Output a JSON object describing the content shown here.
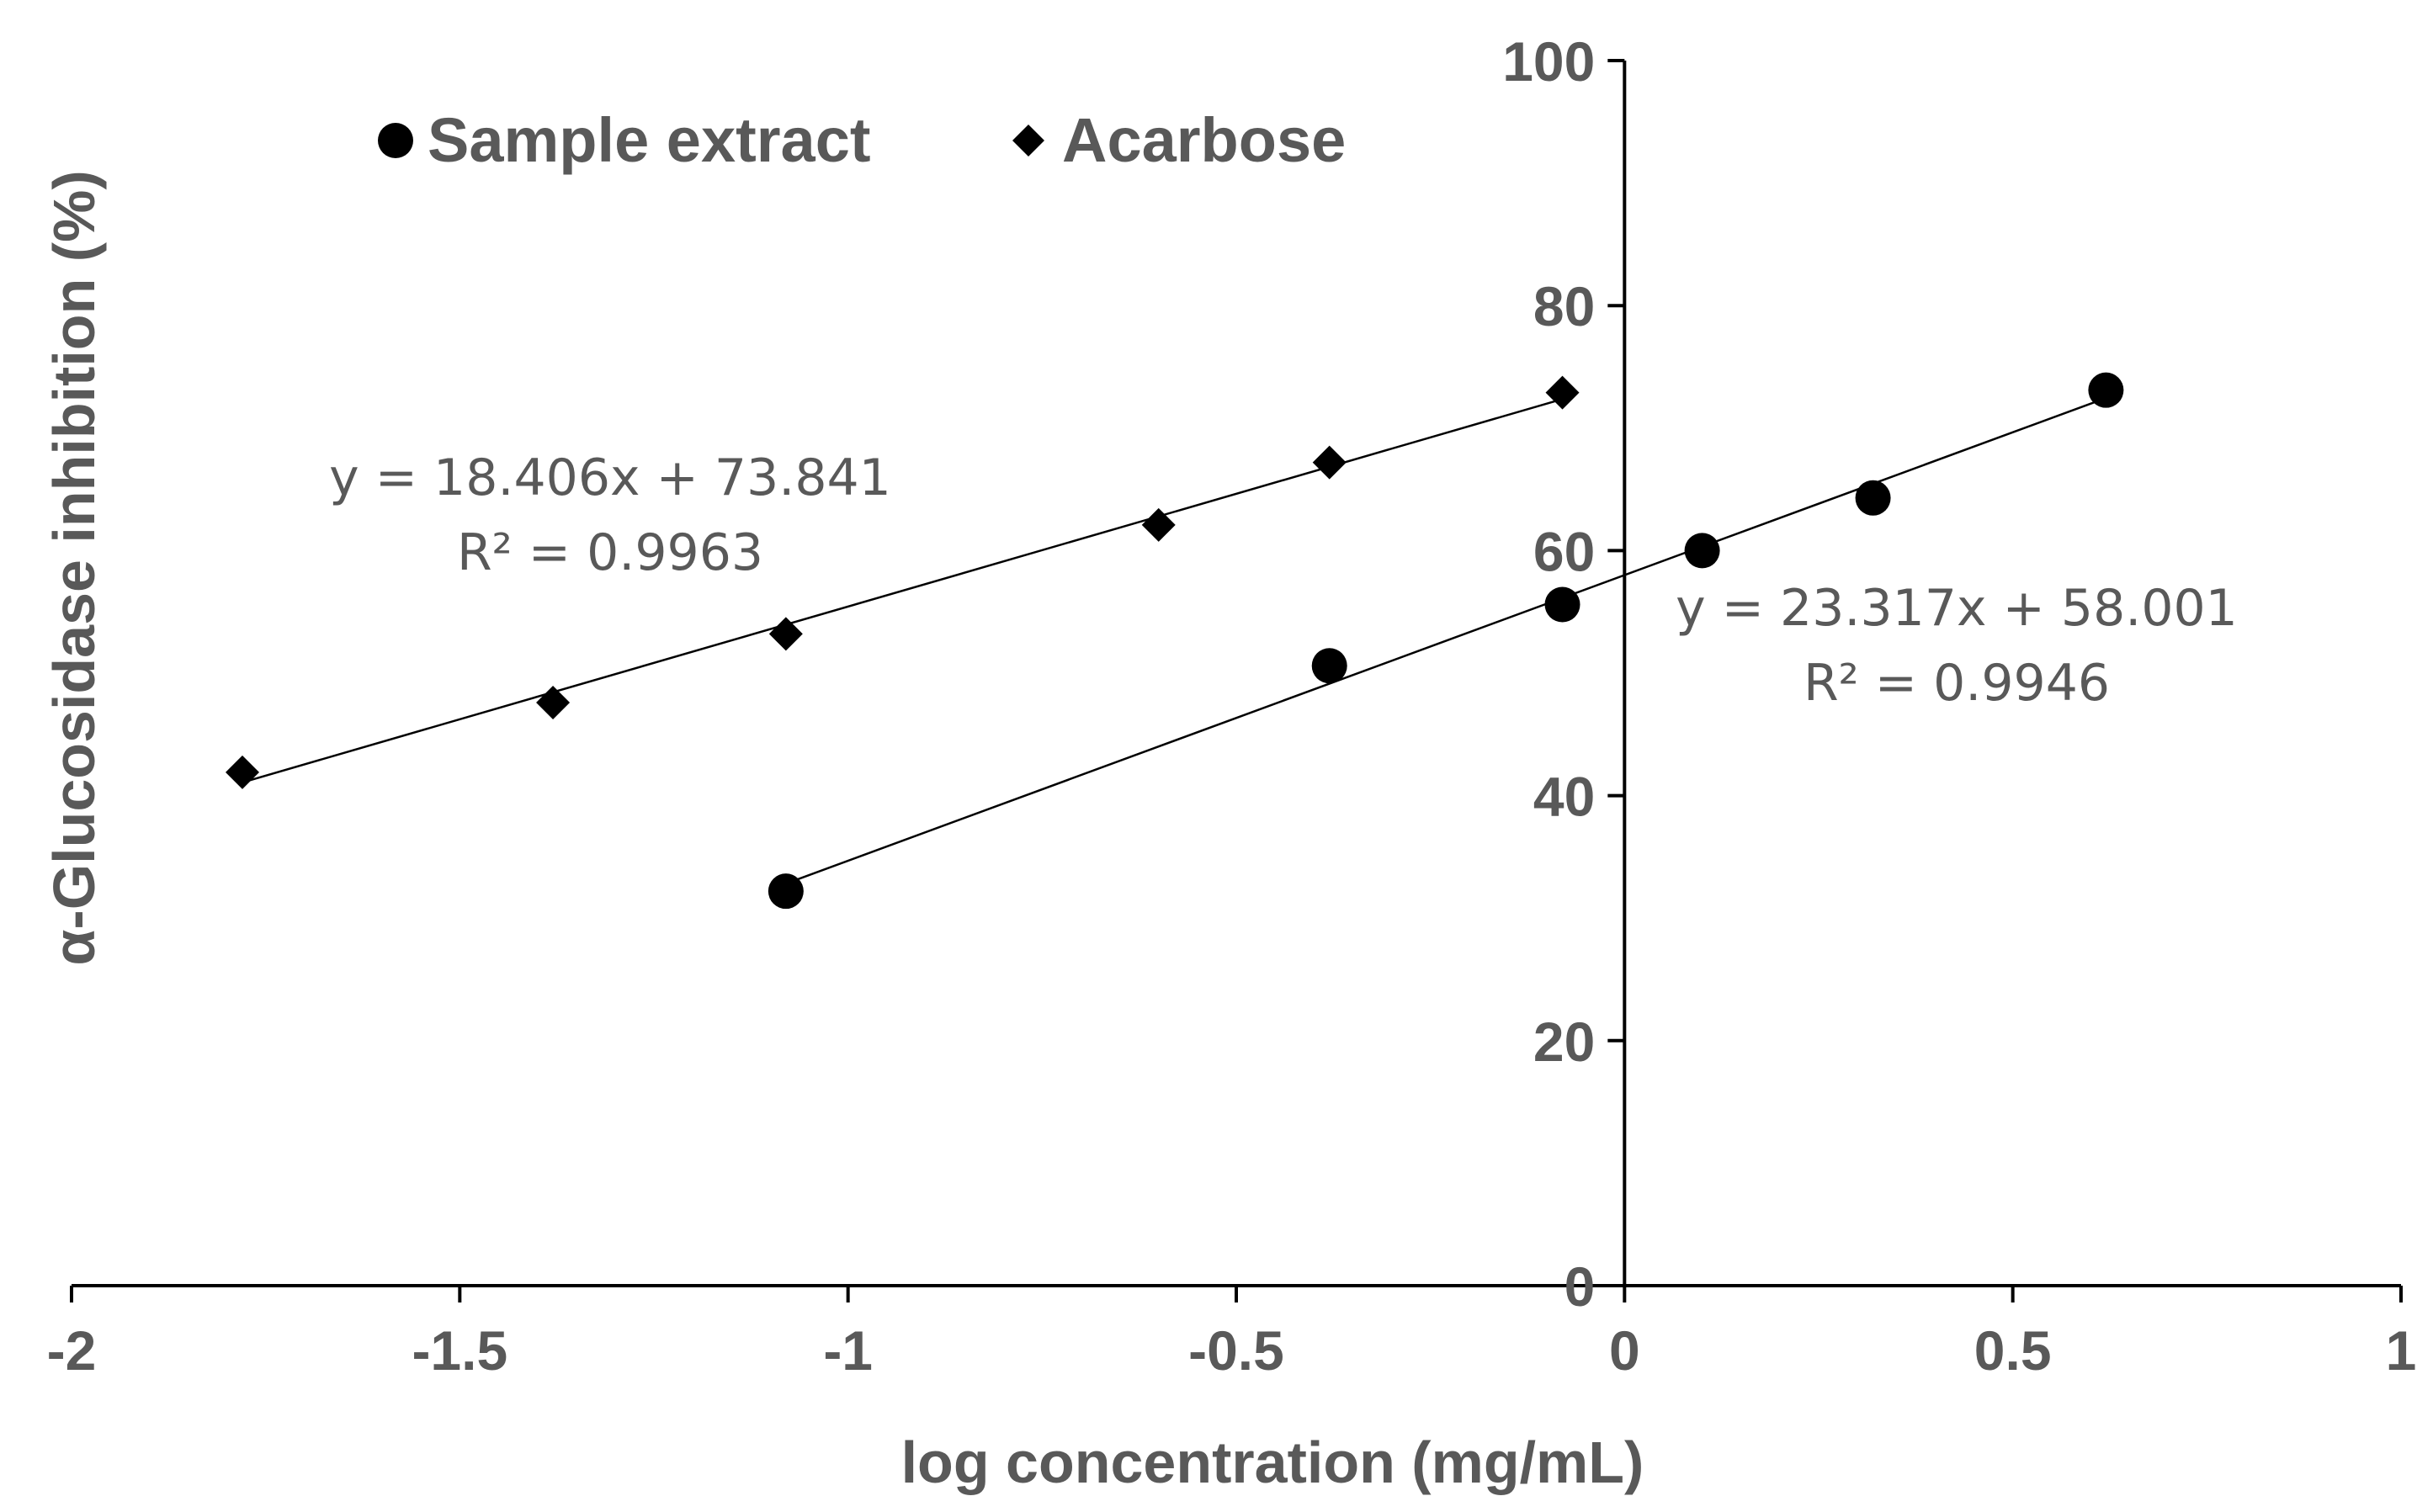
{
  "chart_data": {
    "type": "scatter",
    "title": "",
    "xlabel": "log concentration (mg/mL)",
    "ylabel": "α-Glucosidase inhibition (%)",
    "xlim": [
      -2,
      1
    ],
    "ylim": [
      0,
      100
    ],
    "x_ticks": [
      -2,
      -1.5,
      -1,
      -0.5,
      0,
      0.5,
      1
    ],
    "x_tick_labels": [
      "-2",
      "-1.5",
      "-1",
      "-0.5",
      "0",
      "0.5",
      "1"
    ],
    "y_ticks": [
      0,
      20,
      40,
      60,
      80,
      100
    ],
    "y_tick_labels": [
      "0",
      "20",
      "40",
      "60",
      "80",
      "100"
    ],
    "grid": false,
    "legend_position": "top-left",
    "series": [
      {
        "name": "Sample extract",
        "marker": "circle",
        "color": "#000000",
        "x": [
          -1.08,
          -0.38,
          -0.08,
          0.1,
          0.32,
          0.62
        ],
        "y": [
          32.2,
          50.6,
          55.6,
          60.0,
          64.3,
          73.1
        ],
        "trendline": {
          "slope": 23.317,
          "intercept": 58.001,
          "x_range": [
            -1.08,
            0.62
          ],
          "equation": "y = 23.317x + 58.001",
          "r2_label": "R² = 0.9946"
        }
      },
      {
        "name": "Acarbose",
        "marker": "diamond",
        "color": "#000000",
        "x": [
          -1.78,
          -1.38,
          -1.08,
          -0.6,
          -0.38,
          -0.08
        ],
        "y": [
          41.9,
          47.6,
          53.2,
          62.1,
          67.2,
          72.9
        ],
        "trendline": {
          "slope": 18.406,
          "intercept": 73.841,
          "x_range": [
            -1.78,
            -0.08
          ],
          "equation": "y = 18.406x + 73.841",
          "r2_label": "R² = 0.9963"
        }
      }
    ]
  }
}
